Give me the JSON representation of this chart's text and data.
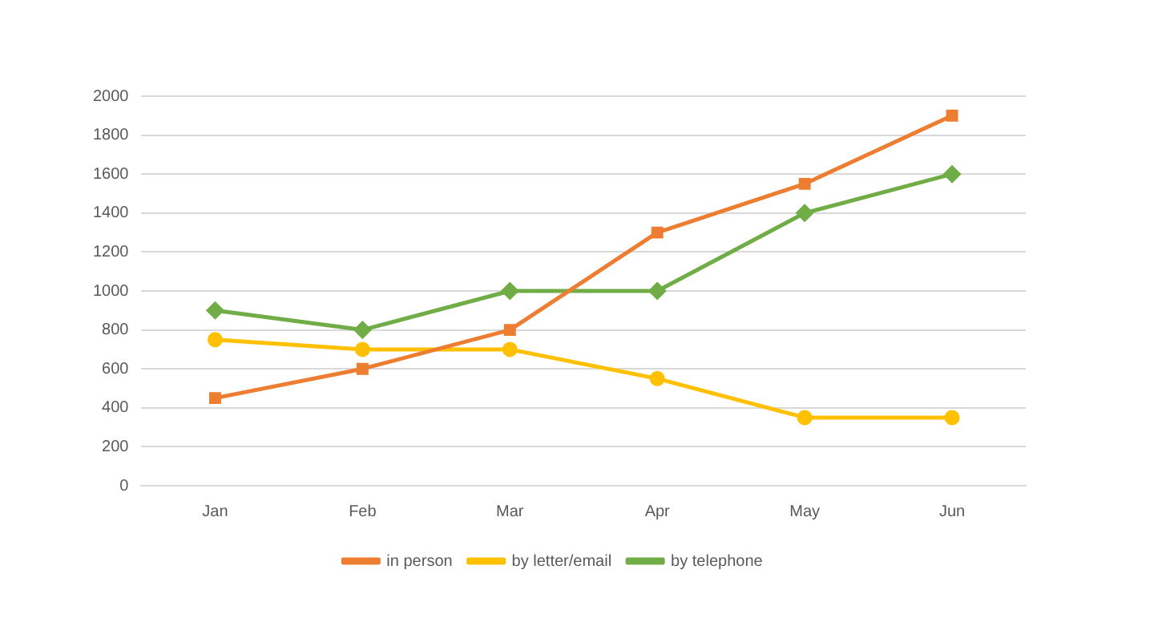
{
  "chart_data": {
    "type": "line",
    "categories": [
      "Jan",
      "Feb",
      "Mar",
      "Apr",
      "May",
      "Jun"
    ],
    "series": [
      {
        "name": "in person",
        "color": "#ed7d31",
        "marker": "square",
        "values": [
          450,
          600,
          800,
          1300,
          1550,
          1900
        ]
      },
      {
        "name": "by letter/email",
        "color": "#ffc000",
        "marker": "circle",
        "values": [
          750,
          700,
          700,
          550,
          350,
          350
        ]
      },
      {
        "name": "by telephone",
        "color": "#70ad47",
        "marker": "diamond",
        "values": [
          900,
          800,
          1000,
          1000,
          1400,
          1600
        ]
      }
    ],
    "ylim": [
      0,
      2000
    ],
    "yticks": [
      0,
      200,
      400,
      600,
      800,
      1000,
      1200,
      1400,
      1600,
      1800,
      2000
    ],
    "grid": "y",
    "legend": "bottom",
    "line_style": "solid"
  }
}
